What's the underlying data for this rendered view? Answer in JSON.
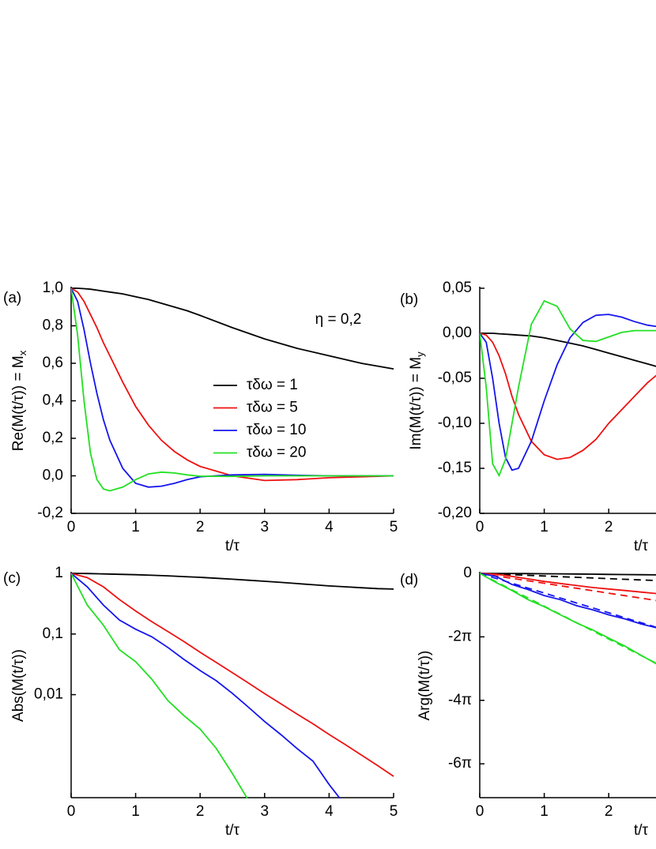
{
  "chart_data": [
    {
      "type": "line",
      "panel_label": "(a)",
      "xlabel": "t/τ",
      "ylabel": "Re(M(t/τ)) = M",
      "ylabel_sub": "x",
      "annotation": "η = 0,2",
      "xlim": [
        0,
        5
      ],
      "xticks": [
        0,
        1,
        2,
        3,
        4,
        5
      ],
      "ylim": [
        -0.2,
        1.0
      ],
      "yticks": [
        {
          "value": -0.2,
          "label": "-0,2"
        },
        {
          "value": 0,
          "label": "0,0"
        },
        {
          "value": 0.2,
          "label": "0,2"
        },
        {
          "value": 0.4,
          "label": "0,4"
        },
        {
          "value": 0.6,
          "label": "0,6"
        },
        {
          "value": 0.8,
          "label": "0,8"
        },
        {
          "value": 1.0,
          "label": "1,0"
        }
      ],
      "x": [
        0,
        0.1,
        0.2,
        0.3,
        0.4,
        0.5,
        0.6,
        0.8,
        1.0,
        1.2,
        1.4,
        1.6,
        1.8,
        2.0,
        2.5,
        3.0,
        3.5,
        4.0,
        4.5,
        5.0
      ],
      "series": [
        {
          "name": "τδω = 1",
          "color": "#000000",
          "values": [
            1,
            1,
            0.998,
            0.995,
            0.99,
            0.985,
            0.98,
            0.97,
            0.955,
            0.94,
            0.92,
            0.9,
            0.88,
            0.855,
            0.79,
            0.73,
            0.68,
            0.64,
            0.6,
            0.57
          ]
        },
        {
          "name": "τδω = 5",
          "color": "#ee1111",
          "values": [
            1,
            0.98,
            0.93,
            0.86,
            0.79,
            0.71,
            0.64,
            0.5,
            0.37,
            0.27,
            0.19,
            0.13,
            0.085,
            0.05,
            0.0,
            -0.025,
            -0.02,
            -0.01,
            -0.005,
            0
          ]
        },
        {
          "name": "τδω = 10",
          "color": "#1515ee",
          "values": [
            1,
            0.93,
            0.78,
            0.6,
            0.44,
            0.3,
            0.19,
            0.04,
            -0.04,
            -0.06,
            -0.055,
            -0.04,
            -0.02,
            -0.005,
            0.005,
            0.008,
            0.003,
            0,
            0,
            0
          ]
        },
        {
          "name": "τδω = 20",
          "color": "#22e022",
          "values": [
            1,
            0.75,
            0.4,
            0.12,
            -0.02,
            -0.07,
            -0.08,
            -0.06,
            -0.02,
            0.01,
            0.02,
            0.015,
            0.005,
            -0.002,
            -0.003,
            0,
            0,
            0,
            0,
            0
          ]
        }
      ]
    },
    {
      "type": "line",
      "panel_label": "(b)",
      "xlabel": "t/τ",
      "ylabel": "Im(M(t/τ)) = M",
      "ylabel_sub": "y",
      "xlim": [
        0,
        5
      ],
      "xticks": [
        0,
        1,
        2
      ],
      "ylim": [
        -0.2,
        0.05
      ],
      "yticks": [
        {
          "value": -0.2,
          "label": "-0,20"
        },
        {
          "value": -0.15,
          "label": "-0,15"
        },
        {
          "value": -0.1,
          "label": "-0,10"
        },
        {
          "value": -0.05,
          "label": "-0,05"
        },
        {
          "value": 0,
          "label": "0,00"
        },
        {
          "value": 0.05,
          "label": "0,05"
        }
      ],
      "x": [
        0,
        0.1,
        0.2,
        0.3,
        0.4,
        0.5,
        0.6,
        0.8,
        1.0,
        1.2,
        1.4,
        1.6,
        1.8,
        2.0,
        2.2,
        2.4,
        2.6,
        2.8
      ],
      "series": [
        {
          "color": "#000000",
          "values": [
            0,
            0,
            0,
            -0.0005,
            -0.001,
            -0.0015,
            -0.002,
            -0.003,
            -0.005,
            -0.008,
            -0.011,
            -0.014,
            -0.018,
            -0.022,
            -0.026,
            -0.03,
            -0.034,
            -0.038
          ]
        },
        {
          "color": "#ee1111",
          "values": [
            0,
            -0.002,
            -0.01,
            -0.025,
            -0.045,
            -0.07,
            -0.09,
            -0.12,
            -0.135,
            -0.14,
            -0.138,
            -0.13,
            -0.118,
            -0.1,
            -0.085,
            -0.07,
            -0.055,
            -0.043
          ]
        },
        {
          "color": "#1515ee",
          "values": [
            0,
            -0.01,
            -0.05,
            -0.1,
            -0.138,
            -0.152,
            -0.15,
            -0.12,
            -0.075,
            -0.035,
            -0.005,
            0.012,
            0.02,
            0.021,
            0.018,
            0.013,
            0.009,
            0.007
          ]
        },
        {
          "color": "#22e022",
          "values": [
            0,
            -0.06,
            -0.145,
            -0.158,
            -0.14,
            -0.1,
            -0.06,
            0.01,
            0.036,
            0.03,
            0.005,
            -0.008,
            -0.009,
            -0.004,
            0.001,
            0.003,
            0.003,
            0.003
          ]
        }
      ]
    },
    {
      "type": "line",
      "panel_label": "(c)",
      "xlabel": "t/τ",
      "ylabel": "Abs(M(t/τ))",
      "log_y": true,
      "xlim": [
        0,
        5
      ],
      "xticks": [
        0,
        1,
        2,
        3,
        4,
        5
      ],
      "ylim": [
        0.0002,
        1
      ],
      "yticks": [
        {
          "value": 0.01,
          "label": "0,01"
        },
        {
          "value": 0.1,
          "label": "0,1"
        },
        1
      ],
      "x": [
        0,
        0.25,
        0.5,
        0.75,
        1,
        1.25,
        1.5,
        1.75,
        2,
        2.25,
        2.5,
        2.75,
        3,
        3.25,
        3.5,
        3.75,
        4,
        4.25,
        4.5,
        4.75,
        5
      ],
      "series": [
        {
          "color": "#000000",
          "values": [
            1,
            0.995,
            0.98,
            0.965,
            0.95,
            0.93,
            0.91,
            0.885,
            0.86,
            0.83,
            0.8,
            0.77,
            0.74,
            0.71,
            0.68,
            0.65,
            0.62,
            0.6,
            0.58,
            0.56,
            0.55
          ]
        },
        {
          "color": "#ee1111",
          "values": [
            1,
            0.85,
            0.6,
            0.37,
            0.24,
            0.16,
            0.11,
            0.075,
            0.05,
            0.034,
            0.023,
            0.0155,
            0.0104,
            0.0071,
            0.0048,
            0.0033,
            0.0022,
            0.0015,
            0.00101,
            0.00068,
            0.00045
          ]
        },
        {
          "color": "#1515ee",
          "values": [
            1,
            0.6,
            0.3,
            0.17,
            0.12,
            0.09,
            0.06,
            0.038,
            0.025,
            0.017,
            0.0105,
            0.0062,
            0.0036,
            0.0022,
            0.0013,
            0.0008,
            0.00033,
            0.00015,
            null,
            null,
            null
          ]
        },
        {
          "color": "#22e022",
          "values": [
            1,
            0.3,
            0.14,
            0.055,
            0.035,
            0.018,
            0.008,
            0.0045,
            0.0027,
            0.0013,
            0.0005,
            0.00018,
            null,
            null,
            null,
            null,
            null,
            null,
            null,
            null,
            null
          ]
        }
      ]
    },
    {
      "type": "line",
      "panel_label": "(d)",
      "xlabel": "t/τ",
      "ylabel": "Arg(M(t/τ))",
      "xlim": [
        0,
        5
      ],
      "xticks": [
        0,
        1,
        2
      ],
      "ylim": [
        -22.2,
        0
      ],
      "yticks": [
        {
          "value": -18.85,
          "label": "-6π"
        },
        {
          "value": -12.566,
          "label": "-4π"
        },
        {
          "value": -6.283,
          "label": "-2π"
        },
        0
      ],
      "x": [
        0,
        0.25,
        0.5,
        0.75,
        1,
        1.25,
        1.5,
        1.75,
        2,
        2.25,
        2.5,
        2.75
      ],
      "series": [
        {
          "color": "#000000",
          "values": [
            0,
            -0.005,
            -0.015,
            -0.025,
            -0.04,
            -0.05,
            -0.065,
            -0.08,
            -0.1,
            -0.115,
            -0.13,
            -0.15
          ]
        },
        {
          "color": "#000000",
          "dashed": true,
          "values": [
            0,
            -0.065,
            -0.13,
            -0.195,
            -0.26,
            -0.325,
            -0.39,
            -0.455,
            -0.52,
            -0.585,
            -0.65,
            -0.715
          ]
        },
        {
          "color": "#ee1111",
          "values": [
            0,
            -0.08,
            -0.3,
            -0.55,
            -0.8,
            -1.0,
            -1.2,
            -1.4,
            -1.55,
            -1.7,
            -1.85,
            -2.0
          ]
        },
        {
          "color": "#ee1111",
          "dashed": true,
          "values": [
            0,
            -0.245,
            -0.49,
            -0.735,
            -0.98,
            -1.225,
            -1.47,
            -1.715,
            -1.96,
            -2.205,
            -2.45,
            -2.695
          ]
        },
        {
          "color": "#1515ee",
          "values": [
            0,
            -0.3,
            -1.1,
            -1.6,
            -2.2,
            -2.6,
            -3.2,
            -3.6,
            -4.1,
            -4.5,
            -5.0,
            -5.4
          ]
        },
        {
          "color": "#1515ee",
          "dashed": true,
          "values": [
            0,
            -0.49,
            -0.98,
            -1.46,
            -1.95,
            -2.44,
            -2.93,
            -3.41,
            -3.9,
            -4.39,
            -4.88,
            -5.36
          ]
        },
        {
          "color": "#22e022",
          "values": [
            0,
            -0.9,
            -1.7,
            -2.6,
            -3.3,
            -4.1,
            -4.9,
            -5.6,
            -6.4,
            -7.2,
            -8.1,
            -9.0
          ]
        },
        {
          "color": "#22e022",
          "dashed": true,
          "values": [
            0,
            -0.81,
            -1.63,
            -2.44,
            -3.25,
            -4.06,
            -4.88,
            -5.69,
            -6.5,
            -7.31,
            -8.13,
            -8.94
          ]
        }
      ]
    }
  ]
}
